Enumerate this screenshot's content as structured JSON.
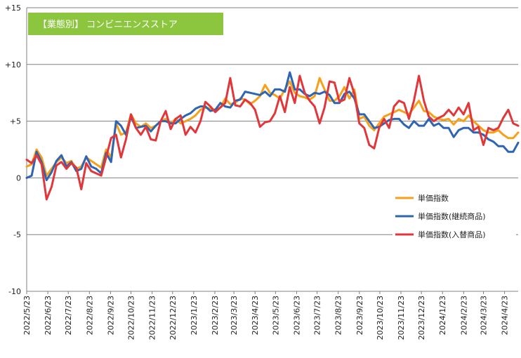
{
  "chart_data": {
    "type": "line",
    "title": "【業態別】 コンビニエンスストア",
    "title_bg_color": "#8cc63f",
    "ylim": [
      -10,
      15
    ],
    "yticks": [
      {
        "value": 15,
        "label": "+15"
      },
      {
        "value": 10,
        "label": "+10"
      },
      {
        "value": 5,
        "label": "+5"
      },
      {
        "value": 0,
        "label": "0"
      },
      {
        "value": -5,
        "label": "-5"
      },
      {
        "value": -10,
        "label": "-10"
      }
    ],
    "x_tick_labels": [
      "2022/5/23",
      "2022/6/23",
      "2022/7/23",
      "2022/8/23",
      "2022/9/23",
      "2022/10/23",
      "2022/11/23",
      "2022/12/23",
      "2023/1/23",
      "2023/2/23",
      "2023/3/23",
      "2023/4/23",
      "2023/5/23",
      "2023/6/23",
      "2023/7/23",
      "2023/8/23",
      "2023/9/23",
      "2023/10/23",
      "2023/11/23",
      "2023/12/23",
      "2024/1/23",
      "2024/2/23",
      "2024/3/23",
      "2024/4/23"
    ],
    "x_start": "2022-05-23",
    "x_end": "2024-05-13",
    "grid": true,
    "legend_position": "right",
    "series": [
      {
        "name": "単価指数",
        "color": "#f7a11a",
        "values": [
          1.0,
          1.2,
          2.5,
          1.8,
          0.2,
          0.8,
          1.4,
          1.8,
          1.3,
          1.5,
          0.8,
          1.0,
          1.8,
          1.5,
          1.2,
          0.9,
          2.5,
          1.8,
          4.8,
          3.8,
          4.0,
          5.6,
          4.8,
          4.5,
          4.8,
          4.4,
          4.6,
          5.0,
          5.2,
          4.8,
          5.2,
          4.8,
          5.0,
          5.2,
          5.5,
          6.0,
          6.2,
          6.1,
          6.0,
          6.2,
          7.0,
          6.5,
          6.6,
          7.0,
          6.9,
          6.5,
          6.8,
          7.2,
          8.2,
          7.5,
          7.3,
          7.0,
          7.8,
          8.5,
          7.5,
          7.2,
          7.1,
          6.9,
          7.2,
          8.8,
          7.8,
          6.8,
          6.8,
          7.2,
          8.0,
          7.0,
          7.8,
          5.2,
          5.4,
          4.6,
          4.2,
          4.8,
          5.4,
          5.6,
          5.8,
          6.0,
          5.8,
          5.6,
          6.2,
          6.8,
          5.9,
          5.8,
          5.4,
          5.2,
          5.1,
          5.2,
          4.7,
          5.2,
          5.0,
          5.5,
          5.0,
          4.6,
          4.2,
          4.0,
          4.0,
          4.2,
          3.8,
          3.5,
          3.5,
          4.0
        ]
      },
      {
        "name": "単価指数(継続商品)",
        "color": "#2e64b3",
        "values": [
          0.0,
          0.2,
          2.3,
          1.4,
          -0.2,
          0.5,
          1.5,
          2.0,
          1.0,
          1.4,
          0.6,
          0.8,
          1.9,
          1.0,
          0.8,
          0.4,
          2.2,
          1.4,
          5.0,
          4.6,
          3.8,
          5.4,
          4.4,
          4.5,
          4.6,
          4.1,
          4.6,
          5.0,
          5.0,
          4.8,
          4.8,
          5.2,
          5.5,
          5.7,
          6.1,
          6.3,
          6.3,
          5.9,
          6.0,
          6.6,
          6.3,
          6.2,
          6.8,
          6.9,
          7.6,
          7.5,
          7.4,
          7.3,
          7.6,
          7.2,
          7.8,
          7.8,
          7.6,
          9.3,
          7.8,
          7.8,
          7.4,
          7.2,
          7.5,
          7.4,
          7.6,
          7.3,
          6.6,
          6.6,
          7.4,
          7.6,
          7.0,
          5.6,
          5.6,
          5.0,
          4.4,
          4.5,
          4.8,
          5.1,
          5.2,
          5.2,
          4.7,
          4.4,
          5.0,
          4.6,
          4.6,
          5.2,
          4.6,
          4.8,
          4.4,
          4.4,
          3.6,
          4.2,
          4.4,
          4.4,
          4.0,
          4.0,
          3.8,
          3.4,
          3.2,
          2.8,
          2.8,
          2.3,
          2.3,
          3.1
        ]
      },
      {
        "name": "単価指数(入替商品)",
        "color": "#e2373a",
        "values": [
          1.6,
          1.3,
          2.0,
          1.2,
          -1.9,
          -0.8,
          1.1,
          1.4,
          0.8,
          1.3,
          0.9,
          -1.0,
          1.3,
          0.6,
          0.4,
          0.2,
          1.8,
          3.5,
          3.8,
          1.8,
          3.4,
          5.6,
          4.4,
          3.8,
          4.5,
          3.4,
          3.3,
          5.0,
          5.9,
          4.3,
          5.2,
          5.5,
          3.8,
          4.5,
          4.0,
          5.0,
          6.7,
          6.3,
          5.8,
          6.2,
          6.6,
          8.8,
          6.4,
          6.3,
          6.9,
          6.6,
          6.0,
          4.5,
          4.9,
          5.0,
          5.7,
          7.2,
          5.8,
          8.0,
          6.6,
          9.0,
          7.5,
          6.8,
          6.3,
          4.8,
          6.2,
          8.5,
          8.4,
          6.7,
          6.9,
          8.8,
          7.4,
          4.8,
          4.4,
          2.9,
          2.6,
          4.4,
          5.2,
          4.4,
          6.3,
          6.8,
          6.6,
          5.2,
          6.8,
          9.0,
          6.8,
          5.4,
          5.0,
          5.3,
          5.5,
          6.0,
          5.5,
          6.2,
          5.6,
          6.6,
          4.2,
          4.5,
          2.9,
          4.4,
          4.2,
          4.4,
          5.3,
          6.0,
          4.8,
          4.6
        ]
      }
    ]
  }
}
